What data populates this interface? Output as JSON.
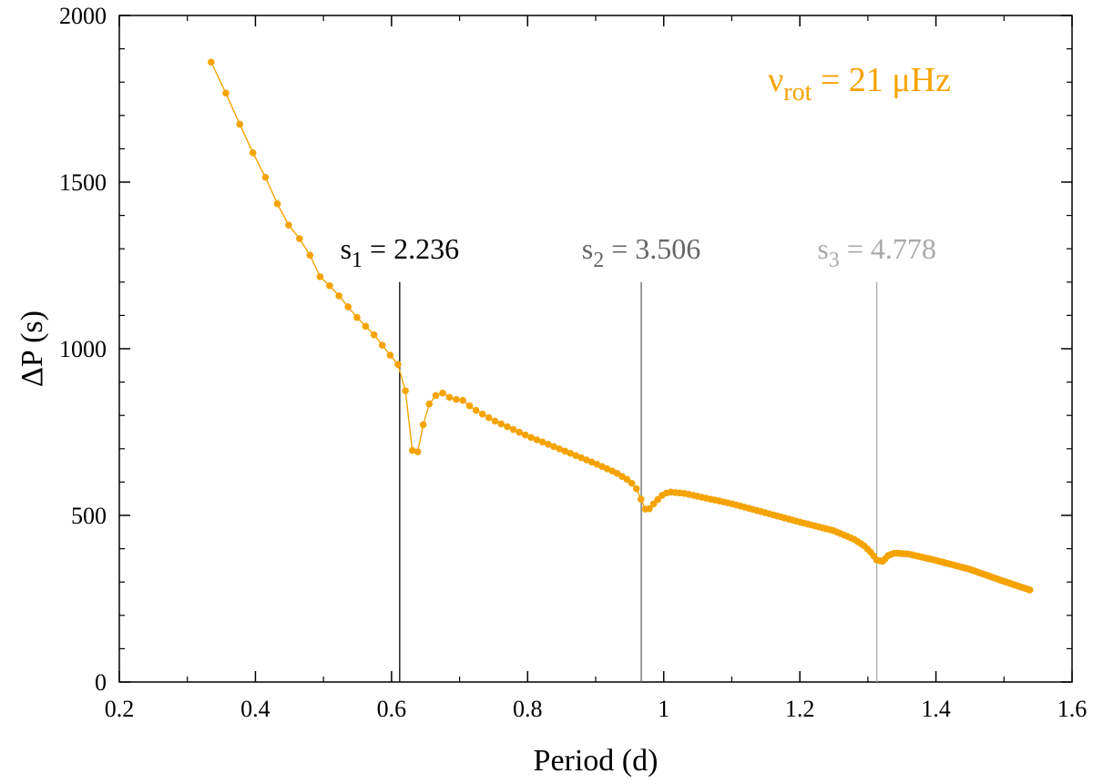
{
  "chart_data": {
    "type": "line",
    "xlabel": "Period (d)",
    "ylabel": "ΔP (s)",
    "xlim": [
      0.2,
      1.6
    ],
    "ylim": [
      0,
      2000
    ],
    "xticks": [
      0.2,
      0.4,
      0.6,
      0.8,
      1.0,
      1.2,
      1.4,
      1.6
    ],
    "xtick_labels": [
      "0.2",
      "0.4",
      "0.6",
      "0.8",
      "1",
      "1.2",
      "1.4",
      "1.6"
    ],
    "yticks": [
      0,
      500,
      1000,
      1500,
      2000
    ],
    "ytick_labels": [
      "0",
      "500",
      "1000",
      "1500",
      "2000"
    ],
    "series_color": "#f5a300",
    "annotation": {
      "symbol": "ν",
      "subscript": "rot",
      "text": " = 21 μHz",
      "color": "#f5a300"
    },
    "vlines": [
      {
        "x": 0.612,
        "symbol": "s",
        "subscript": "1",
        "text": " = 2.236",
        "color": "#000000"
      },
      {
        "x": 0.967,
        "symbol": "s",
        "subscript": "2",
        "text": " = 3.506",
        "color": "#666666"
      },
      {
        "x": 1.313,
        "symbol": "s",
        "subscript": "3",
        "text": " = 4.778",
        "color": "#aaaaaa"
      }
    ],
    "anchors": [
      [
        0.335,
        1860
      ],
      [
        0.357,
        1765
      ],
      [
        0.376,
        1678
      ],
      [
        0.394,
        1597
      ],
      [
        0.411,
        1532
      ],
      [
        0.428,
        1453
      ],
      [
        0.444,
        1385
      ],
      [
        0.459,
        1342
      ],
      [
        0.475,
        1310
      ],
      [
        0.49,
        1225
      ],
      [
        0.504,
        1200
      ],
      [
        0.518,
        1170
      ],
      [
        0.532,
        1137
      ],
      [
        0.545,
        1103
      ],
      [
        0.558,
        1075
      ],
      [
        0.571,
        1050
      ],
      [
        0.584,
        1017
      ],
      [
        0.596,
        985
      ],
      [
        0.608,
        960
      ],
      [
        0.615,
        925
      ],
      [
        0.624,
        840
      ],
      [
        0.63,
        695
      ],
      [
        0.64,
        690
      ],
      [
        0.65,
        815
      ],
      [
        0.662,
        857
      ],
      [
        0.675,
        867
      ],
      [
        0.69,
        848
      ],
      [
        0.703,
        848
      ],
      [
        0.72,
        820
      ],
      [
        0.75,
        785
      ],
      [
        0.8,
        738
      ],
      [
        0.85,
        697
      ],
      [
        0.9,
        655
      ],
      [
        0.93,
        628
      ],
      [
        0.95,
        603
      ],
      [
        0.962,
        575
      ],
      [
        0.968,
        540
      ],
      [
        0.975,
        510
      ],
      [
        0.983,
        530
      ],
      [
        0.99,
        545
      ],
      [
        1.0,
        565
      ],
      [
        1.01,
        570
      ],
      [
        1.03,
        566
      ],
      [
        1.1,
        535
      ],
      [
        1.2,
        480
      ],
      [
        1.25,
        454
      ],
      [
        1.28,
        428
      ],
      [
        1.295,
        408
      ],
      [
        1.305,
        388
      ],
      [
        1.313,
        366
      ],
      [
        1.322,
        362
      ],
      [
        1.33,
        380
      ],
      [
        1.34,
        387
      ],
      [
        1.36,
        384
      ],
      [
        1.4,
        365
      ],
      [
        1.45,
        338
      ],
      [
        1.5,
        302
      ],
      [
        1.54,
        275
      ]
    ]
  }
}
